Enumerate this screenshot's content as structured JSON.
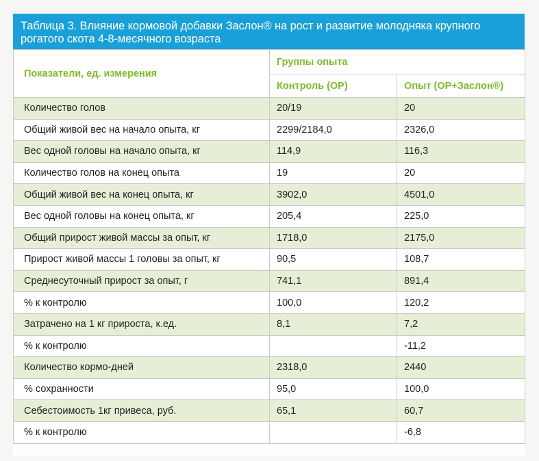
{
  "title": "Таблица 3. Влияние кормовой добавки Заслон® на рост и развитие молодняка крупного рогатого скота 4-8-месячного возраста",
  "header": {
    "param_label": "Показатели, ед. измерения",
    "groups_label": "Группы опыта",
    "control_label": "Контроль (ОР)",
    "experiment_label": "Опыт (ОР+Заслон®)"
  },
  "colors": {
    "title_bg": "#1aa0d8",
    "header_text": "#7dbb2c",
    "row_shade": "#e6efd6"
  },
  "rows": [
    {
      "param": "Количество голов",
      "control": "20/19",
      "experiment": "20"
    },
    {
      "param": "Общий живой вес на начало опыта, кг",
      "control": "2299/2184,0",
      "experiment": "2326,0"
    },
    {
      "param": "Вес одной головы на начало опыта, кг",
      "control": "114,9",
      "experiment": "116,3"
    },
    {
      "param": "Количество голов на конец опыта",
      "control": "19",
      "experiment": "20"
    },
    {
      "param": "Общий живой вес на конец опыта, кг",
      "control": "3902,0",
      "experiment": "4501,0"
    },
    {
      "param": "Вес одной головы на конец опыта, кг",
      "control": "205,4",
      "experiment": "225,0"
    },
    {
      "param": "Общий прирост живой массы за опыт, кг",
      "control": "1718,0",
      "experiment": "2175,0"
    },
    {
      "param": "Прирост живой массы 1 головы за опыт, кг",
      "control": "90,5",
      "experiment": "108,7"
    },
    {
      "param": "Среднесуточный прирост за опыт, г",
      "control": "741,1",
      "experiment": "891,4"
    },
    {
      "param": "% к контролю",
      "control": "100,0",
      "experiment": "120,2"
    },
    {
      "param": "Затрачено на 1 кг прироста, к.ед.",
      "control": "8,1",
      "experiment": "7,2"
    },
    {
      "param": "% к контролю",
      "control": "",
      "experiment": "-11,2"
    },
    {
      "param": "Количество кормо-дней",
      "control": "2318,0",
      "experiment": "2440"
    },
    {
      "param": "% сохранности",
      "control": "95,0",
      "experiment": "100,0"
    },
    {
      "param": "Себестоимость 1кг привеса, руб.",
      "control": "65,1",
      "experiment": "60,7"
    },
    {
      "param": "% к контролю",
      "control": "",
      "experiment": "-6,8"
    }
  ]
}
